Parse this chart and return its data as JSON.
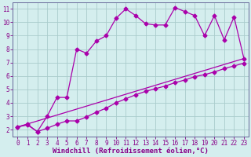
{
  "xlabel": "Windchill (Refroidissement éolien,°C)",
  "bg_color": "#d4eeee",
  "line_color": "#aa00aa",
  "grid_color": "#aacccc",
  "xlim": [
    -0.5,
    23.5
  ],
  "ylim": [
    1.5,
    11.5
  ],
  "xticks": [
    0,
    1,
    2,
    3,
    4,
    5,
    6,
    7,
    8,
    9,
    10,
    11,
    12,
    13,
    14,
    15,
    16,
    17,
    18,
    19,
    20,
    21,
    22,
    23
  ],
  "yticks": [
    2,
    3,
    4,
    5,
    6,
    7,
    8,
    9,
    10,
    11
  ],
  "line1_x": [
    0,
    1,
    2,
    3,
    4,
    5,
    6,
    7,
    8,
    9,
    10,
    11,
    12,
    13,
    14,
    15,
    16,
    17,
    18,
    19,
    20,
    21,
    22,
    23
  ],
  "line1_y": [
    2.2,
    2.4,
    1.85,
    3.0,
    4.4,
    4.4,
    8.0,
    7.7,
    8.6,
    9.0,
    10.3,
    11.0,
    10.5,
    9.9,
    9.8,
    9.8,
    11.1,
    10.8,
    10.5,
    9.0,
    10.5,
    8.7,
    10.4,
    7.3
  ],
  "line2_x": [
    0,
    23
  ],
  "line2_y": [
    2.2,
    7.3
  ],
  "line3_x": [
    0,
    1,
    2,
    3,
    4,
    5,
    6,
    7,
    8,
    9,
    10,
    11,
    12,
    13,
    14,
    15,
    16,
    17,
    18,
    19,
    20,
    21,
    22,
    23
  ],
  "line3_y": [
    2.2,
    2.35,
    1.85,
    2.1,
    2.4,
    2.65,
    2.65,
    2.95,
    3.3,
    3.6,
    4.0,
    4.3,
    4.6,
    4.85,
    5.05,
    5.25,
    5.5,
    5.7,
    5.95,
    6.1,
    6.3,
    6.55,
    6.75,
    6.95
  ],
  "marker": "D",
  "markersize": 2.5,
  "linewidth": 0.9,
  "tick_fontsize": 5.5,
  "label_fontsize": 6.5,
  "axis_color": "#880088",
  "spine_color": "#666699"
}
